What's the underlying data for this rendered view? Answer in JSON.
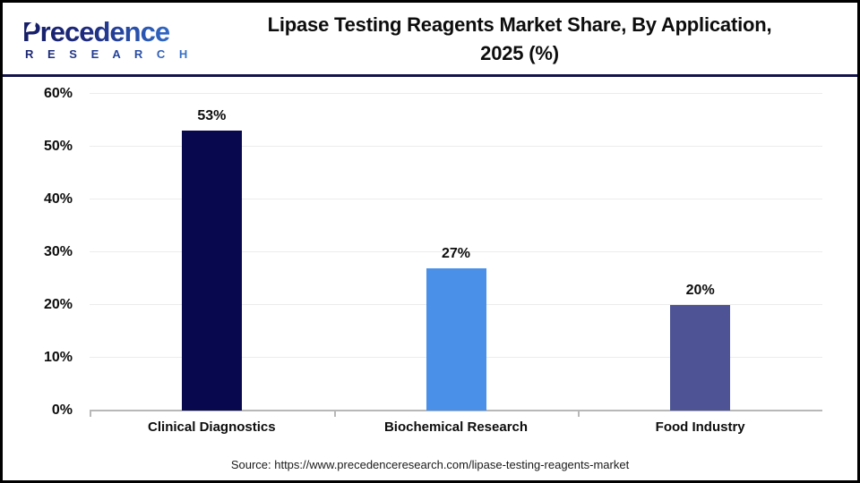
{
  "header": {
    "logo_word": "Precedence",
    "logo_sub": "R E S E A R C H",
    "title_line1": "Lipase Testing Reagents Market Share, By Application,",
    "title_line2": "2025 (%)"
  },
  "chart_data": {
    "type": "bar",
    "title": "Lipase Testing Reagents Market Share, By Application, 2025 (%)",
    "categories": [
      "Clinical Diagnostics",
      "Biochemical Research",
      "Food Industry"
    ],
    "values": [
      53,
      27,
      20
    ],
    "value_labels": [
      "53%",
      "27%",
      "20%"
    ],
    "bar_colors": [
      "#08084f",
      "#4a90e8",
      "#4d5394"
    ],
    "xlabel": "",
    "ylabel": "",
    "ylim": [
      0,
      60
    ],
    "ytick_step": 10,
    "ytick_labels": [
      "0%",
      "10%",
      "20%",
      "30%",
      "40%",
      "50%",
      "60%"
    ],
    "grid": "horizontal",
    "legend": "none"
  },
  "footer": {
    "source": "Source: https://www.precedenceresearch.com/lipase-testing-reagents-market"
  },
  "colors": {
    "outer_border": "#000000",
    "header_divider": "#14144a",
    "gridline": "#ececec",
    "axis_line": "#b8b8b8",
    "logo_dark": "#151d66",
    "logo_light": "#3b82d6",
    "text": "#0d0d0d"
  }
}
